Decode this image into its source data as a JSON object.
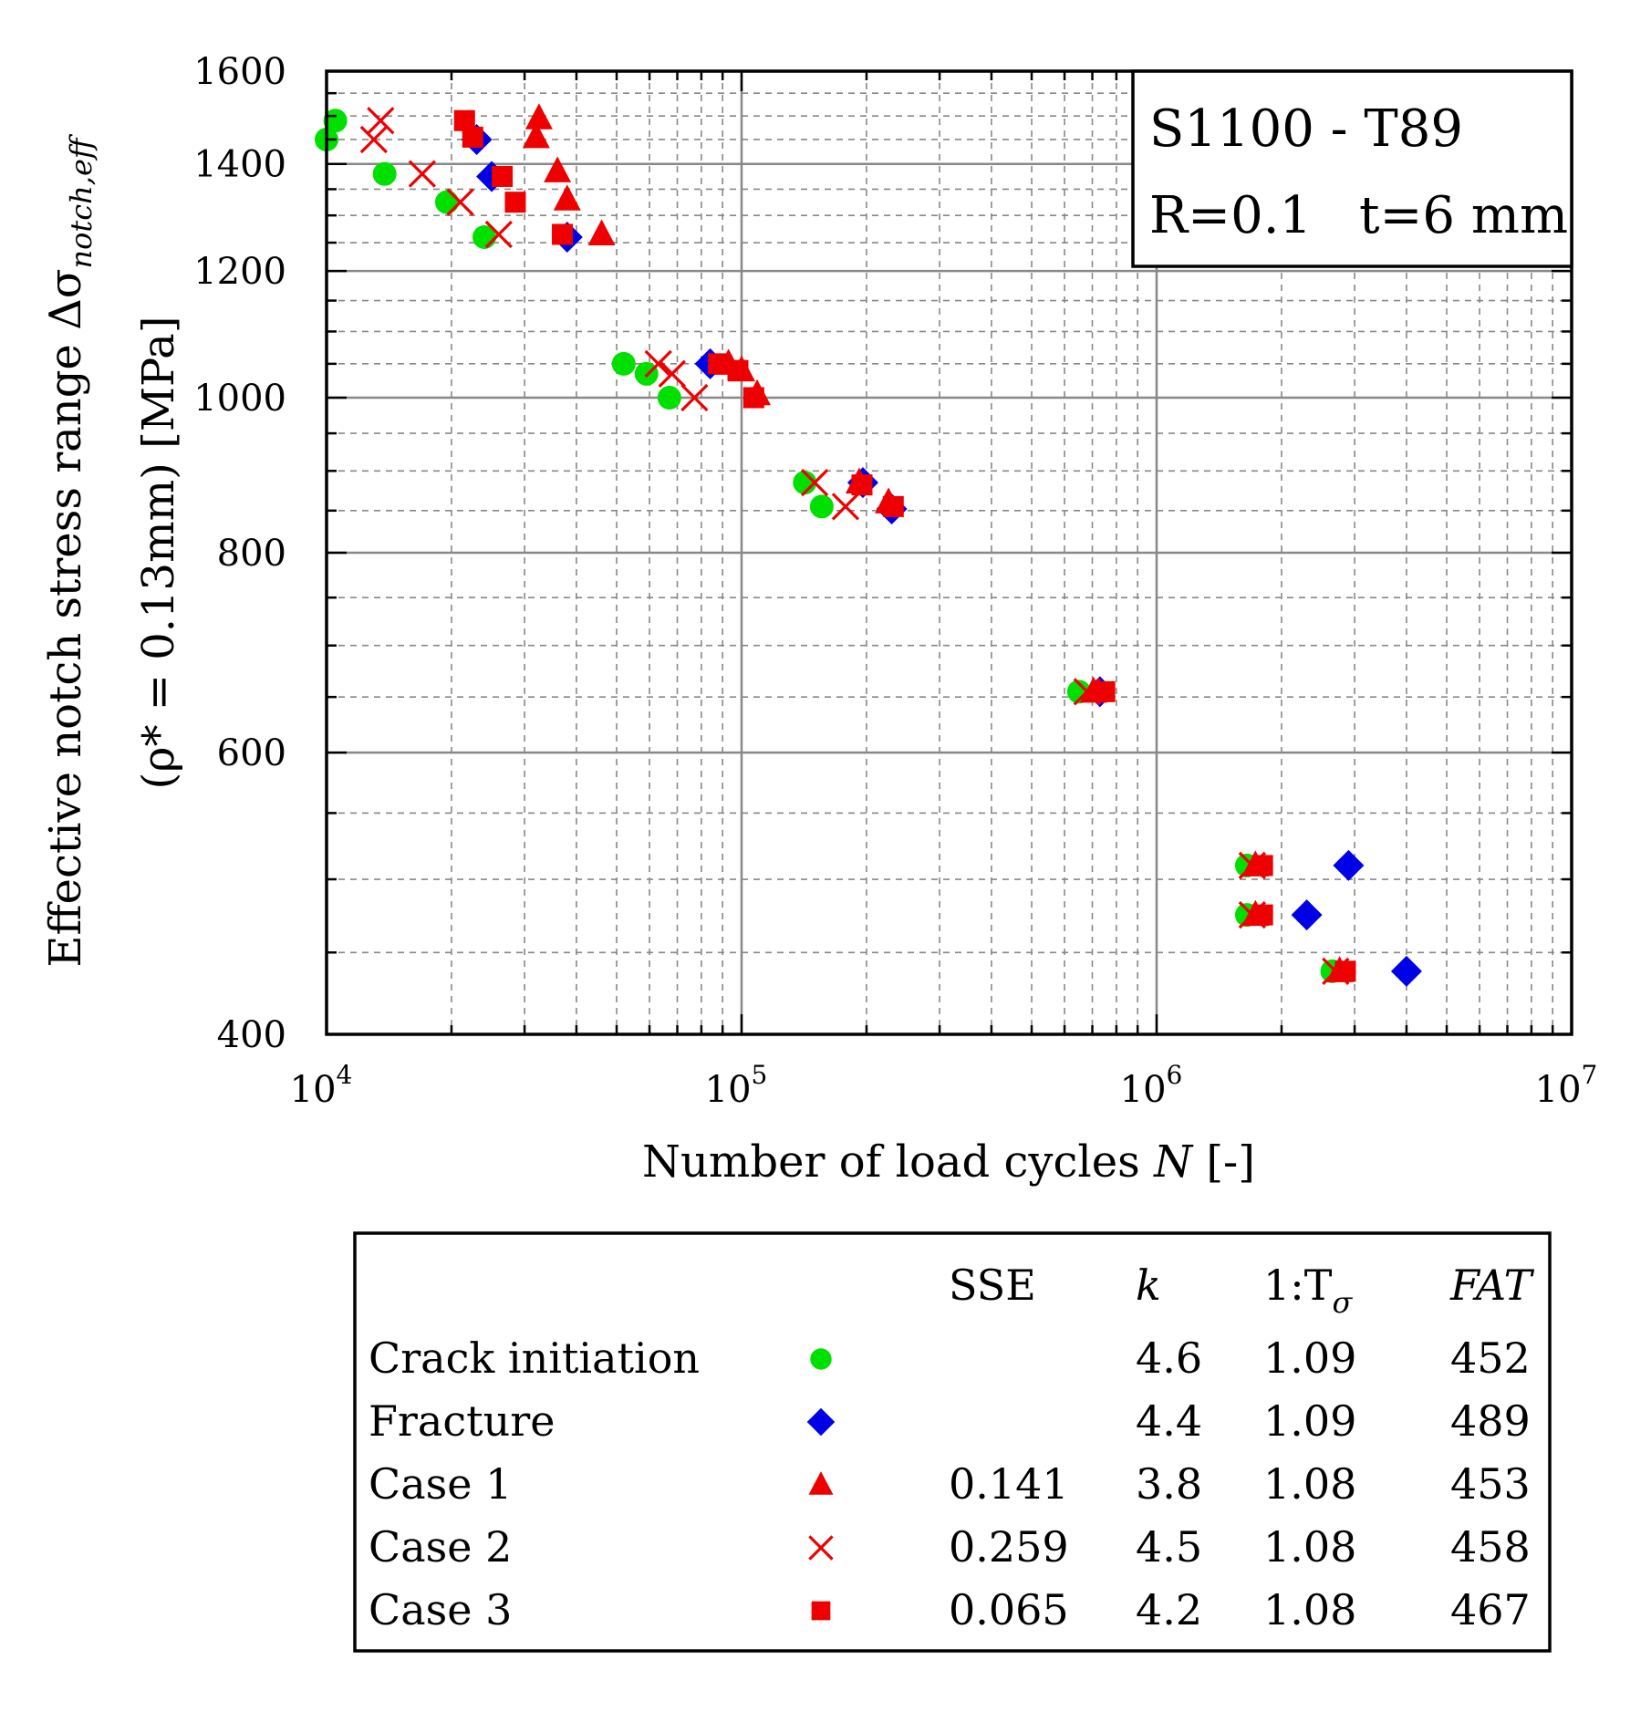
{
  "chart_data": {
    "type": "scatter",
    "x_scale": "log",
    "y_scale": "log",
    "xlim": [
      10000,
      10000000
    ],
    "ylim": [
      400,
      1600
    ],
    "x_ticks": [
      {
        "value": 10000,
        "base": "10",
        "exp": "4"
      },
      {
        "value": 100000,
        "base": "10",
        "exp": "5"
      },
      {
        "value": 1000000,
        "base": "10",
        "exp": "6"
      },
      {
        "value": 10000000,
        "base": "10",
        "exp": "7"
      }
    ],
    "y_ticks": [
      {
        "value": 400,
        "label": "400"
      },
      {
        "value": 600,
        "label": "600"
      },
      {
        "value": 800,
        "label": "800"
      },
      {
        "value": 1000,
        "label": "1000"
      },
      {
        "value": 1200,
        "label": "1200"
      },
      {
        "value": 1400,
        "label": "1400"
      },
      {
        "value": 1600,
        "label": "1600"
      }
    ],
    "xlabel": {
      "pre": "Number of load cycles ",
      "var": "N",
      "post": " [-]"
    },
    "ylabel": {
      "line1": "Effective notch stress range Δσ",
      "line1_sub": "notch,eff",
      "line2": "(ρ* = 0.13mm) [MPa]"
    },
    "info_box": {
      "line1": "S1100 - T89",
      "line2a": "R=0.1",
      "line2b": "t=6 mm"
    },
    "series": [
      {
        "name": "Crack initiation",
        "marker": "circle",
        "color": "#00e000",
        "points": [
          [
            10000,
            1450
          ],
          [
            10500,
            1490
          ],
          [
            13800,
            1380
          ],
          [
            19500,
            1325
          ],
          [
            24000,
            1260
          ],
          [
            52000,
            1050
          ],
          [
            59000,
            1035
          ],
          [
            67000,
            1000
          ],
          [
            142000,
            885
          ],
          [
            156000,
            855
          ],
          [
            650000,
            655
          ],
          [
            1650000,
            510
          ],
          [
            1650000,
            475
          ],
          [
            2650000,
            438
          ]
        ]
      },
      {
        "name": "Fracture",
        "marker": "diamond",
        "color": "#0000e6",
        "points": [
          [
            23000,
            1450
          ],
          [
            25000,
            1375
          ],
          [
            38000,
            1260
          ],
          [
            84000,
            1050
          ],
          [
            196000,
            885
          ],
          [
            230000,
            852
          ],
          [
            730000,
            655
          ],
          [
            2900000,
            510
          ],
          [
            2300000,
            475
          ],
          [
            4000000,
            438
          ]
        ]
      },
      {
        "name": "Case 1",
        "marker": "triangle",
        "color": "#ee0000",
        "points": [
          [
            32500,
            1495
          ],
          [
            32000,
            1455
          ],
          [
            36000,
            1385
          ],
          [
            38000,
            1330
          ],
          [
            46000,
            1265
          ],
          [
            93000,
            1050
          ],
          [
            100000,
            1040
          ],
          [
            109000,
            1005
          ],
          [
            192000,
            885
          ],
          [
            226000,
            860
          ],
          [
            705000,
            655
          ],
          [
            1730000,
            510
          ],
          [
            1730000,
            475
          ],
          [
            2760000,
            438
          ]
        ]
      },
      {
        "name": "Case 2",
        "marker": "x",
        "color": "#ee0000",
        "points": [
          [
            13500,
            1490
          ],
          [
            13000,
            1450
          ],
          [
            17000,
            1380
          ],
          [
            21000,
            1325
          ],
          [
            26000,
            1265
          ],
          [
            63000,
            1050
          ],
          [
            68000,
            1035
          ],
          [
            77000,
            1000
          ],
          [
            150000,
            885
          ],
          [
            178000,
            855
          ],
          [
            680000,
            655
          ],
          [
            1700000,
            510
          ],
          [
            1700000,
            475
          ],
          [
            2700000,
            438
          ]
        ]
      },
      {
        "name": "Case 3",
        "marker": "square",
        "color": "#ee0000",
        "points": [
          [
            21500,
            1490
          ],
          [
            22500,
            1455
          ],
          [
            26500,
            1375
          ],
          [
            28500,
            1325
          ],
          [
            37000,
            1265
          ],
          [
            88000,
            1050
          ],
          [
            98000,
            1040
          ],
          [
            107000,
            1000
          ],
          [
            195000,
            882
          ],
          [
            232000,
            855
          ],
          [
            750000,
            655
          ],
          [
            1800000,
            510
          ],
          [
            1800000,
            475
          ],
          [
            2850000,
            438
          ]
        ]
      }
    ],
    "legend": {
      "headers": {
        "sse": "SSE",
        "k": "k",
        "t_pre": "1:T",
        "t_sub": "σ",
        "fat": "FAT"
      },
      "rows": [
        {
          "label": "Crack initiation",
          "marker": "circle",
          "color": "#00e000",
          "sse": "",
          "k": "4.6",
          "t": "1.09",
          "fat": "452"
        },
        {
          "label": "Fracture",
          "marker": "diamond",
          "color": "#0000e6",
          "sse": "",
          "k": "4.4",
          "t": "1.09",
          "fat": "489"
        },
        {
          "label": "Case 1",
          "marker": "triangle",
          "color": "#ee0000",
          "sse": "0.141",
          "k": "3.8",
          "t": "1.08",
          "fat": "453"
        },
        {
          "label": "Case 2",
          "marker": "x",
          "color": "#ee0000",
          "sse": "0.259",
          "k": "4.5",
          "t": "1.08",
          "fat": "458"
        },
        {
          "label": "Case 3",
          "marker": "square",
          "color": "#ee0000",
          "sse": "0.065",
          "k": "4.2",
          "t": "1.08",
          "fat": "467"
        }
      ]
    }
  }
}
